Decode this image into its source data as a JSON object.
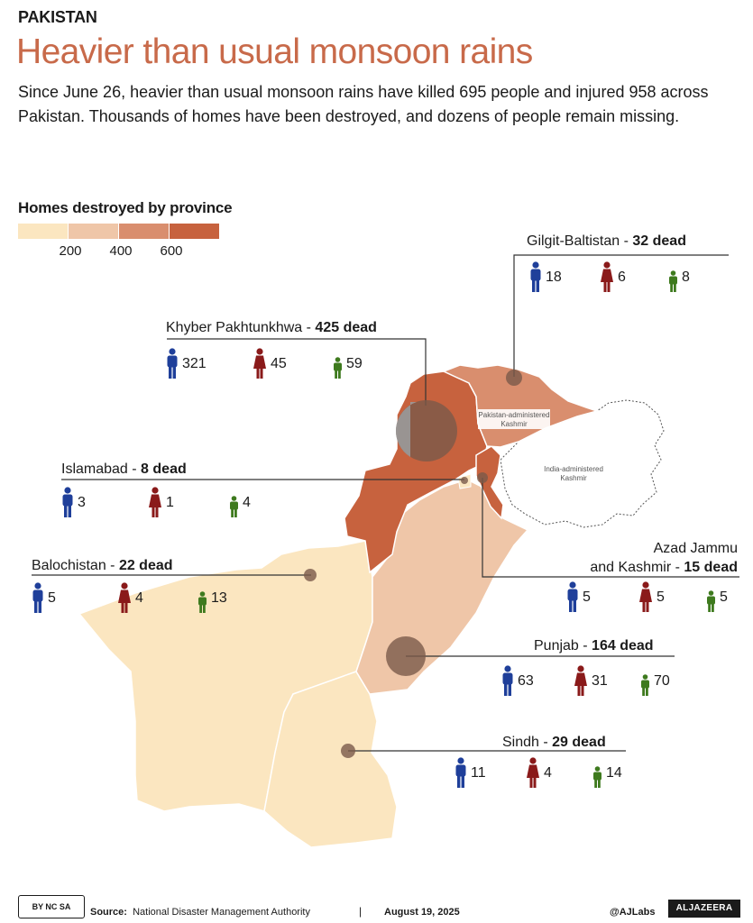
{
  "header": {
    "kicker": "PAKISTAN",
    "title": "Heavier than usual monsoon rains",
    "subtitle": "Since June 26, heavier than usual monsoon rains have killed 695 people and injured 958 across Pakistan. Thousands of homes have been destroyed, and dozens of people remain missing."
  },
  "legend": {
    "title": "Homes destroyed by province",
    "ticks": [
      "200",
      "400",
      "600"
    ],
    "colors": [
      "#fbe6c0",
      "#efc6a8",
      "#d98e6e",
      "#c7623e"
    ]
  },
  "map_labels": {
    "pak_kashmir": [
      "Pakistan-administered",
      "Kashmir"
    ],
    "india_kashmir": [
      "India-administered",
      "Kashmir"
    ]
  },
  "colors": {
    "men": "#1f3f9a",
    "women": "#8a1a1a",
    "children": "#3e7a1e",
    "bubble": "#7a5a4a"
  },
  "icon_names": {
    "men": "man-icon",
    "women": "woman-icon",
    "children": "child-icon"
  },
  "provinces": [
    {
      "name": "Gilgit-Baltistan",
      "dead": "32 dead",
      "men": "18",
      "women": "6",
      "children": "8"
    },
    {
      "name": "Khyber Pakhtunkhwa",
      "dead": "425 dead",
      "men": "321",
      "women": "45",
      "children": "59"
    },
    {
      "name": "Islamabad",
      "dead": "8 dead",
      "men": "3",
      "women": "1",
      "children": "4"
    },
    {
      "name_line1": "Azad Jammu",
      "name_line2": "and Kashmir",
      "dead": "15 dead",
      "men": "5",
      "women": "5",
      "children": "5"
    },
    {
      "name": "Balochistan",
      "dead": "22 dead",
      "men": "5",
      "women": "4",
      "children": "13"
    },
    {
      "name": "Punjab",
      "dead": "164 dead",
      "men": "63",
      "women": "31",
      "children": "70"
    },
    {
      "name": "Sindh",
      "dead": "29 dead",
      "men": "11",
      "women": "4",
      "children": "14"
    }
  ],
  "footer": {
    "license": "BY NC SA",
    "source_label": "Source:",
    "source": "National Disaster Management Authority",
    "separator": "|",
    "date": "August 19, 2025",
    "handle": "@AJLabs",
    "brand": "ALJAZEERA"
  }
}
